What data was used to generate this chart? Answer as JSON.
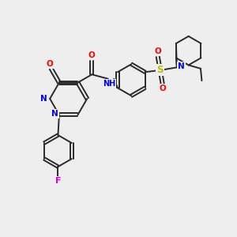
{
  "bg_color": "#eeeeee",
  "bond_color": "#2a2a2a",
  "line_width": 1.4,
  "atom_colors": {
    "N": "#0000ff",
    "O": "#ff0000",
    "F": "#dd00dd",
    "S": "#bbbb00",
    "C": "#2a2a2a",
    "H": "#00aa44"
  },
  "font_size": 7.5,
  "title": ""
}
